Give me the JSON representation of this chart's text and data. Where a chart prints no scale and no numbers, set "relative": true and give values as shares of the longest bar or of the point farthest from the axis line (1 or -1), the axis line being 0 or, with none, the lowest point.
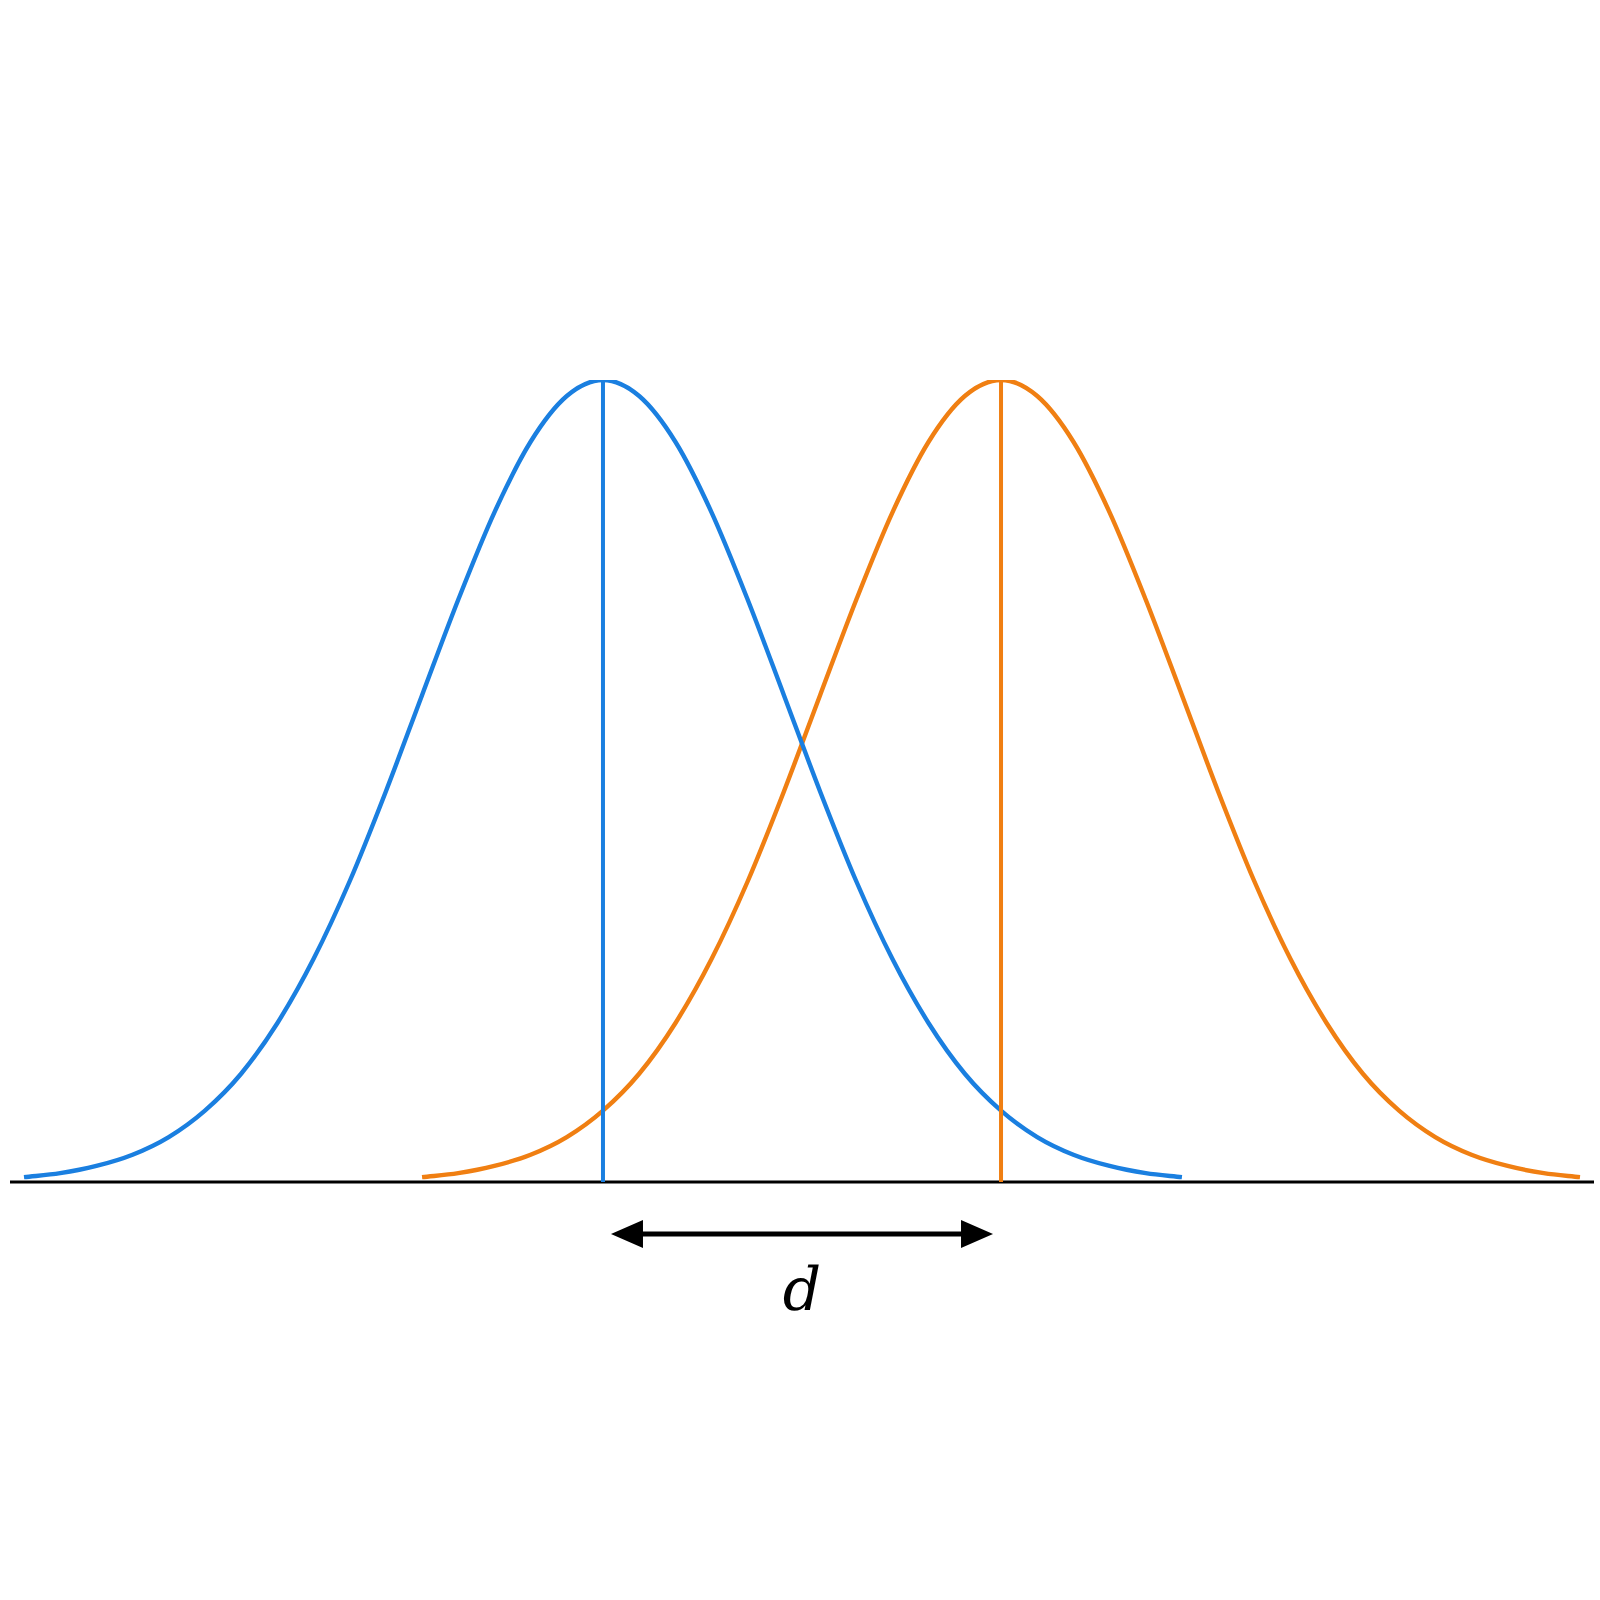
{
  "chart_data": {
    "type": "line",
    "relative": true,
    "categories": [
      null,
      null,
      null,
      null,
      null,
      null,
      null,
      null,
      null,
      null,
      null,
      null,
      null,
      null,
      null,
      null,
      null,
      null,
      null,
      null,
      null,
      null,
      null,
      null,
      null,
      null,
      null,
      null,
      null,
      null,
      null,
      null,
      null,
      null,
      null,
      null,
      null,
      null,
      null,
      null,
      null,
      null,
      null,
      null
    ],
    "series": [
      {
        "color": "#1a7fe0",
        "values": [
          0.006,
          0.011,
          0.02,
          0.034,
          0.056,
          0.089,
          0.135,
          0.198,
          0.278,
          0.375,
          0.487,
          0.607,
          0.726,
          0.835,
          0.923,
          0.98,
          1,
          0.98,
          0.923,
          0.835,
          0.726,
          0.607,
          0.487,
          0.375,
          0.278,
          0.198,
          0.135,
          0.089,
          0.056,
          0.034,
          0.02,
          0.011,
          0.006,
          null,
          null,
          null,
          null,
          null,
          null,
          null,
          null,
          null,
          null,
          null
        ]
      },
      {
        "color": "#f07f12",
        "values": [
          null,
          null,
          null,
          null,
          null,
          null,
          null,
          null,
          null,
          null,
          null,
          0.006,
          0.011,
          0.02,
          0.034,
          0.056,
          0.089,
          0.135,
          0.198,
          0.278,
          0.375,
          0.487,
          0.607,
          0.726,
          0.835,
          0.923,
          0.98,
          1,
          0.98,
          0.923,
          0.835,
          0.726,
          0.607,
          0.487,
          0.375,
          0.278,
          0.198,
          0.135,
          0.089,
          0.056,
          0.034,
          0.02,
          0.011,
          0.006
        ]
      }
    ],
    "annotations": [
      "d"
    ]
  }
}
